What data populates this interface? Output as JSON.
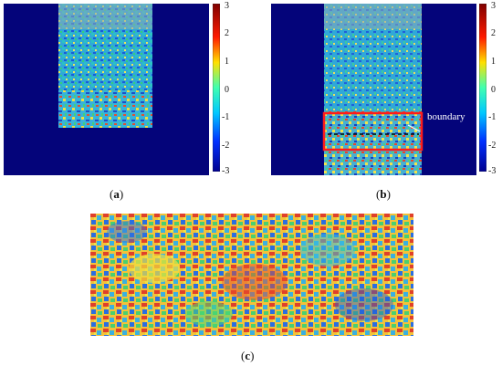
{
  "figure": {
    "panels": [
      {
        "id": "a",
        "caption_open": "(",
        "caption_letter": "a",
        "caption_close": ")"
      },
      {
        "id": "b",
        "caption_open": "(",
        "caption_letter": "b",
        "caption_close": ")",
        "annotation": "boundary"
      },
      {
        "id": "c",
        "caption_open": "(",
        "caption_letter": "c",
        "caption_close": ")"
      }
    ],
    "colorbar": {
      "ticks": [
        "3",
        "2",
        "1",
        "0",
        "-1",
        "-2",
        "-3"
      ],
      "colors": [
        "#7f0000",
        "#ff0000",
        "#ffff00",
        "#00ffff",
        "#0000ff",
        "#00008f"
      ]
    }
  }
}
